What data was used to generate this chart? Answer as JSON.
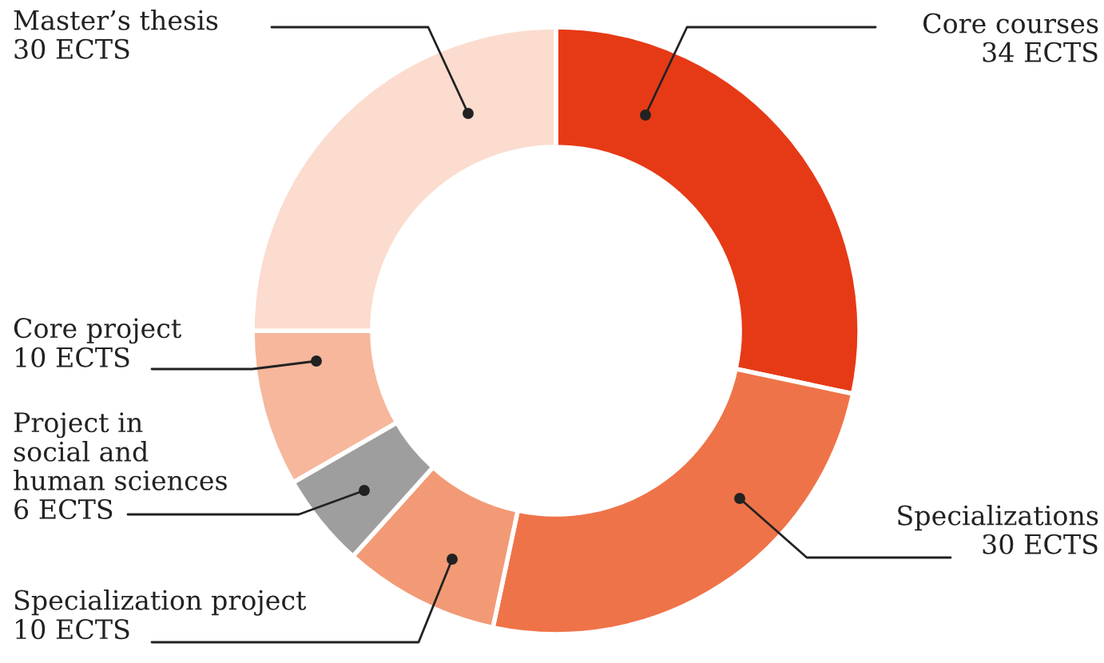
{
  "chart_data": {
    "type": "donut",
    "categories": [
      "Core courses",
      "Specializations",
      "Specialization project",
      "Project in social and human sciences",
      "Core project",
      "Master’s thesis"
    ],
    "values": [
      34,
      30,
      10,
      6,
      10,
      30
    ],
    "value_labels": [
      "34 ECTS",
      "30 ECTS",
      "10 ECTS",
      "6 ECTS",
      "10 ECTS",
      "30 ECTS"
    ],
    "colors": [
      "#e63a16",
      "#ef7348",
      "#f29a75",
      "#9e9e9e",
      "#f6b79c",
      "#fbdcce"
    ]
  }
}
